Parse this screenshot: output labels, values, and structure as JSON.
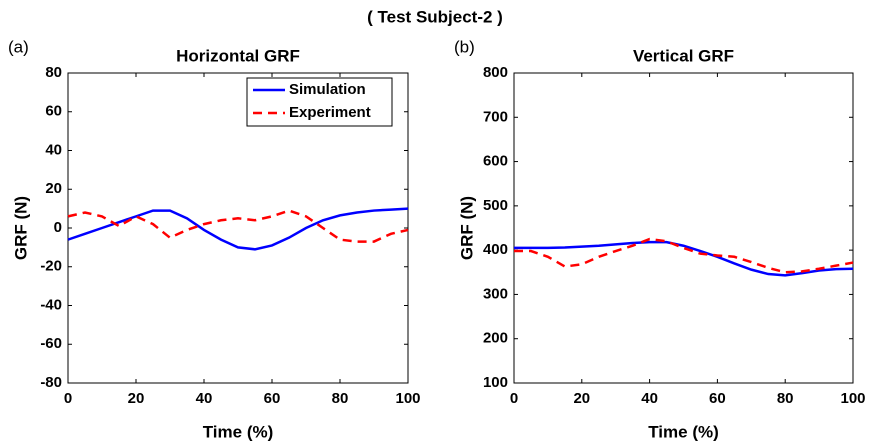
{
  "figure_title": "( Test Subject-2 )",
  "chart_data": [
    {
      "type": "line",
      "panel_label": "(a)",
      "title": "Horizontal GRF",
      "xlabel": "Time (%)",
      "ylabel": "GRF (N)",
      "x": [
        0,
        5,
        10,
        15,
        20,
        25,
        30,
        35,
        40,
        45,
        50,
        55,
        60,
        65,
        70,
        75,
        80,
        85,
        90,
        95,
        100
      ],
      "series": [
        {
          "name": "Simulation",
          "color": "#0000ff",
          "dash": false,
          "values": [
            -6,
            -3,
            0,
            3,
            6,
            9,
            9,
            5,
            -1,
            -6,
            -10,
            -11,
            -9,
            -5,
            0,
            4,
            6.5,
            8,
            9,
            9.5,
            10
          ]
        },
        {
          "name": "Experiment",
          "color": "#ff0000",
          "dash": true,
          "values": [
            6,
            8,
            6,
            1,
            6,
            2,
            -5,
            -1,
            2,
            4,
            5,
            4,
            6,
            9,
            6,
            0,
            -6,
            -7,
            -7,
            -3,
            -1
          ]
        }
      ],
      "xlim": [
        0,
        100
      ],
      "xticks": [
        0,
        20,
        40,
        60,
        80,
        100
      ],
      "ylim": [
        -80,
        80
      ],
      "yticks": [
        -80,
        -60,
        -40,
        -20,
        0,
        20,
        40,
        60,
        80
      ],
      "legend": "upper right"
    },
    {
      "type": "line",
      "panel_label": "(b)",
      "title": "Vertical GRF",
      "xlabel": "Time (%)",
      "ylabel": "GRF (N)",
      "x": [
        0,
        5,
        10,
        15,
        20,
        25,
        30,
        35,
        40,
        45,
        50,
        55,
        60,
        65,
        70,
        75,
        80,
        85,
        90,
        95,
        100
      ],
      "series": [
        {
          "name": "Simulation",
          "color": "#0000ff",
          "dash": false,
          "values": [
            405,
            405,
            405,
            406,
            408,
            410,
            413,
            416,
            418,
            418,
            410,
            398,
            385,
            370,
            356,
            346,
            343,
            348,
            354,
            357,
            358
          ]
        },
        {
          "name": "Experiment",
          "color": "#ff0000",
          "dash": true,
          "values": [
            398,
            398,
            385,
            363,
            368,
            385,
            398,
            410,
            425,
            420,
            405,
            392,
            388,
            385,
            373,
            360,
            350,
            352,
            358,
            365,
            372
          ]
        }
      ],
      "xlim": [
        0,
        100
      ],
      "xticks": [
        0,
        20,
        40,
        60,
        80,
        100
      ],
      "ylim": [
        100,
        800
      ],
      "yticks": [
        100,
        200,
        300,
        400,
        500,
        600,
        700,
        800
      ],
      "legend": false
    }
  ]
}
